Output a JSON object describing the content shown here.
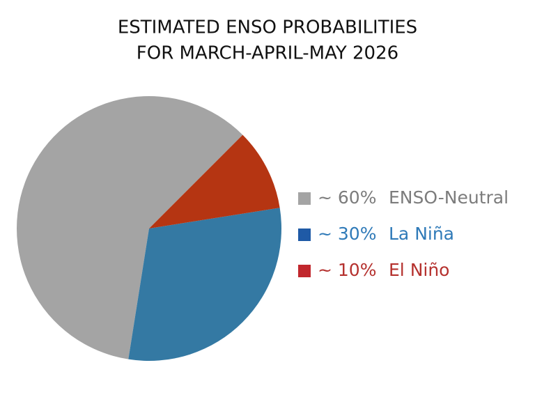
{
  "chart_data": {
    "type": "pie",
    "title": [
      "ESTIMATED ENSO PROBABILITIES",
      "FOR MARCH-APRIL-MAY 2026"
    ],
    "categories": [
      "ENSO-Neutral",
      "La Niña",
      "El Niño"
    ],
    "values": [
      60,
      30,
      10
    ],
    "value_labels": [
      "~ 60%",
      "~ 30%",
      "~ 10%"
    ],
    "colors": [
      "#a4a4a4",
      "#3479a3",
      "#b53512"
    ],
    "legend_colors": [
      "#a4a4a4",
      "#1f5aa6",
      "#c1272d"
    ],
    "label_colors": [
      "#7c7c7c",
      "#2f7ab8",
      "#b5312e"
    ]
  }
}
